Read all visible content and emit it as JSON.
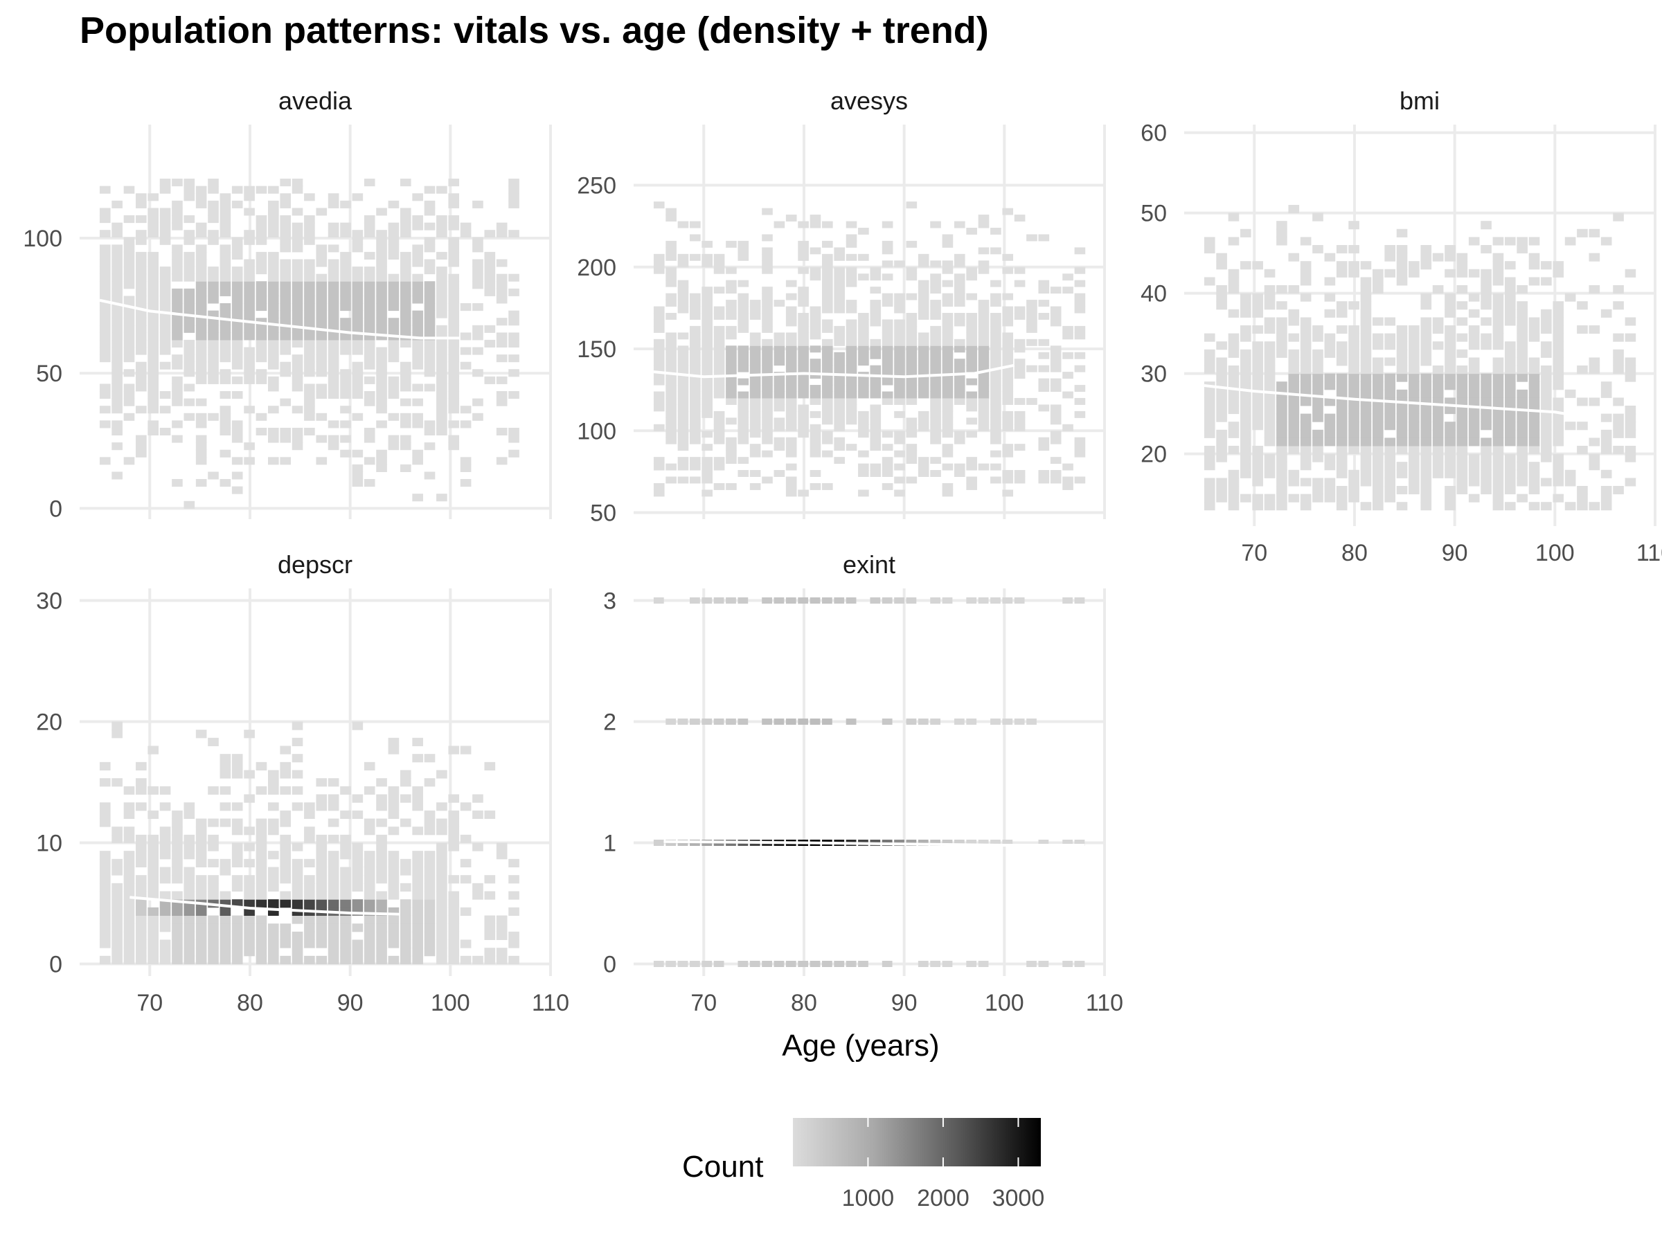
{
  "chart_data": {
    "type": "heatmap",
    "title": "Population patterns: vitals vs. age (density + trend)",
    "xlabel": "Age (years)",
    "xlim": [
      63,
      110
    ],
    "x_ticks": [
      70,
      80,
      90,
      100,
      110
    ],
    "legend": {
      "title": "Count",
      "ticks": [
        1000,
        2000,
        3000
      ],
      "range": [
        1,
        3300
      ],
      "placement": "bottom"
    },
    "panels": [
      {
        "name": "avedia",
        "ylim": [
          -4,
          142
        ],
        "y_ticks": [
          0,
          50,
          100
        ],
        "x_range": [
          65,
          106
        ],
        "y_range": [
          0,
          122
        ],
        "core": [
          60,
          82
        ],
        "core_density": 0.3,
        "peak_density": 0.12,
        "core_x": [
          72,
          98
        ],
        "trend": [
          [
            65,
            77
          ],
          [
            70,
            73
          ],
          [
            80,
            69
          ],
          [
            90,
            65
          ],
          [
            97,
            63
          ],
          [
            101,
            63
          ]
        ]
      },
      {
        "name": "avesys",
        "ylim": [
          46,
          287
        ],
        "y_ticks": [
          50,
          100,
          150,
          200,
          250
        ],
        "x_range": [
          65,
          108
        ],
        "y_range": [
          60,
          240
        ],
        "core": [
          120,
          150
        ],
        "core_density": 0.3,
        "peak_density": 0.12,
        "core_x": [
          72,
          98
        ],
        "trend": [
          [
            65,
            136
          ],
          [
            70,
            133
          ],
          [
            80,
            135
          ],
          [
            90,
            133
          ],
          [
            97,
            135
          ],
          [
            101,
            140
          ]
        ]
      },
      {
        "name": "bmi",
        "ylim": [
          11,
          61
        ],
        "y_ticks": [
          20,
          30,
          40,
          50,
          60
        ],
        "x_range": [
          65,
          108
        ],
        "y_range": [
          13,
          58
        ],
        "core": [
          21,
          29
        ],
        "core_density": 0.3,
        "peak_density": 0.12,
        "core_x": [
          72,
          98
        ],
        "trend": [
          [
            65,
            28.5
          ],
          [
            70,
            27.8
          ],
          [
            80,
            26.8
          ],
          [
            90,
            26
          ],
          [
            100,
            25.2
          ],
          [
            101,
            25
          ]
        ]
      },
      {
        "name": "depscr",
        "ylim": [
          -1,
          31
        ],
        "y_ticks": [
          0,
          10,
          20,
          30
        ],
        "x_range": [
          65,
          107
        ],
        "y_range": [
          0,
          30
        ],
        "core": [
          0,
          5
        ],
        "core_density": 0.3,
        "peak_density": 0.05,
        "core_x": [
          72,
          98
        ],
        "hot_row": {
          "y": 4,
          "x_from": 68,
          "x_to": 95,
          "peak_x": 82,
          "peak": 0.8
        },
        "trend": [
          [
            68,
            5.5
          ],
          [
            75,
            5
          ],
          [
            80,
            4.6
          ],
          [
            90,
            4.2
          ],
          [
            95,
            4.1
          ]
        ]
      },
      {
        "name": "exint",
        "ylim": [
          -0.1,
          3.1
        ],
        "y_ticks": [
          0,
          1,
          2,
          3
        ],
        "x_range": [
          65,
          108
        ],
        "y_range": [
          0,
          3
        ],
        "levels": [
          0,
          1,
          2,
          3
        ],
        "level_peak": [
          0.1,
          1,
          0.15,
          0.12
        ],
        "peak_x": 80,
        "trend": [
          [
            66,
            1.01
          ],
          [
            80,
            1
          ],
          [
            90,
            0.99
          ],
          [
            100,
            0.98
          ],
          [
            108,
            0.98
          ]
        ]
      }
    ]
  }
}
